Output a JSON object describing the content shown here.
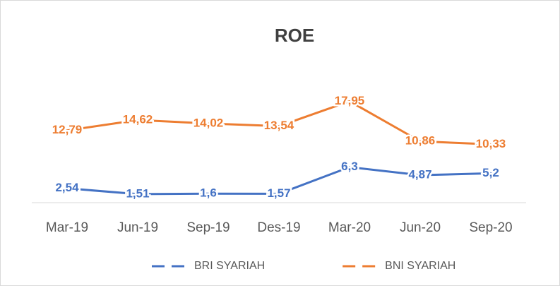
{
  "chart_data": {
    "type": "line",
    "title": "ROE",
    "categories": [
      "Mar-19",
      "Jun-19",
      "Sep-19",
      "Des-19",
      "Mar-20",
      "Jun-20",
      "Sep-20"
    ],
    "series": [
      {
        "name": "BRI SYARIAH",
        "color": "#4472c4",
        "values": [
          2.54,
          1.51,
          1.6,
          1.57,
          6.3,
          4.87,
          5.2
        ],
        "value_labels": [
          "2,54",
          "1,51",
          "1,6",
          "1,57",
          "6,3",
          "4,87",
          "5,2"
        ]
      },
      {
        "name": "BNI SYARIAH",
        "color": "#ed7d31",
        "values": [
          12.79,
          14.62,
          14.02,
          13.54,
          17.95,
          10.86,
          10.33
        ],
        "value_labels": [
          "12,79",
          "14,62",
          "14,02",
          "13,54",
          "17,95",
          "10,86",
          "10,33"
        ]
      }
    ],
    "ylim": [
      0,
      20
    ],
    "legend": "bottom"
  }
}
